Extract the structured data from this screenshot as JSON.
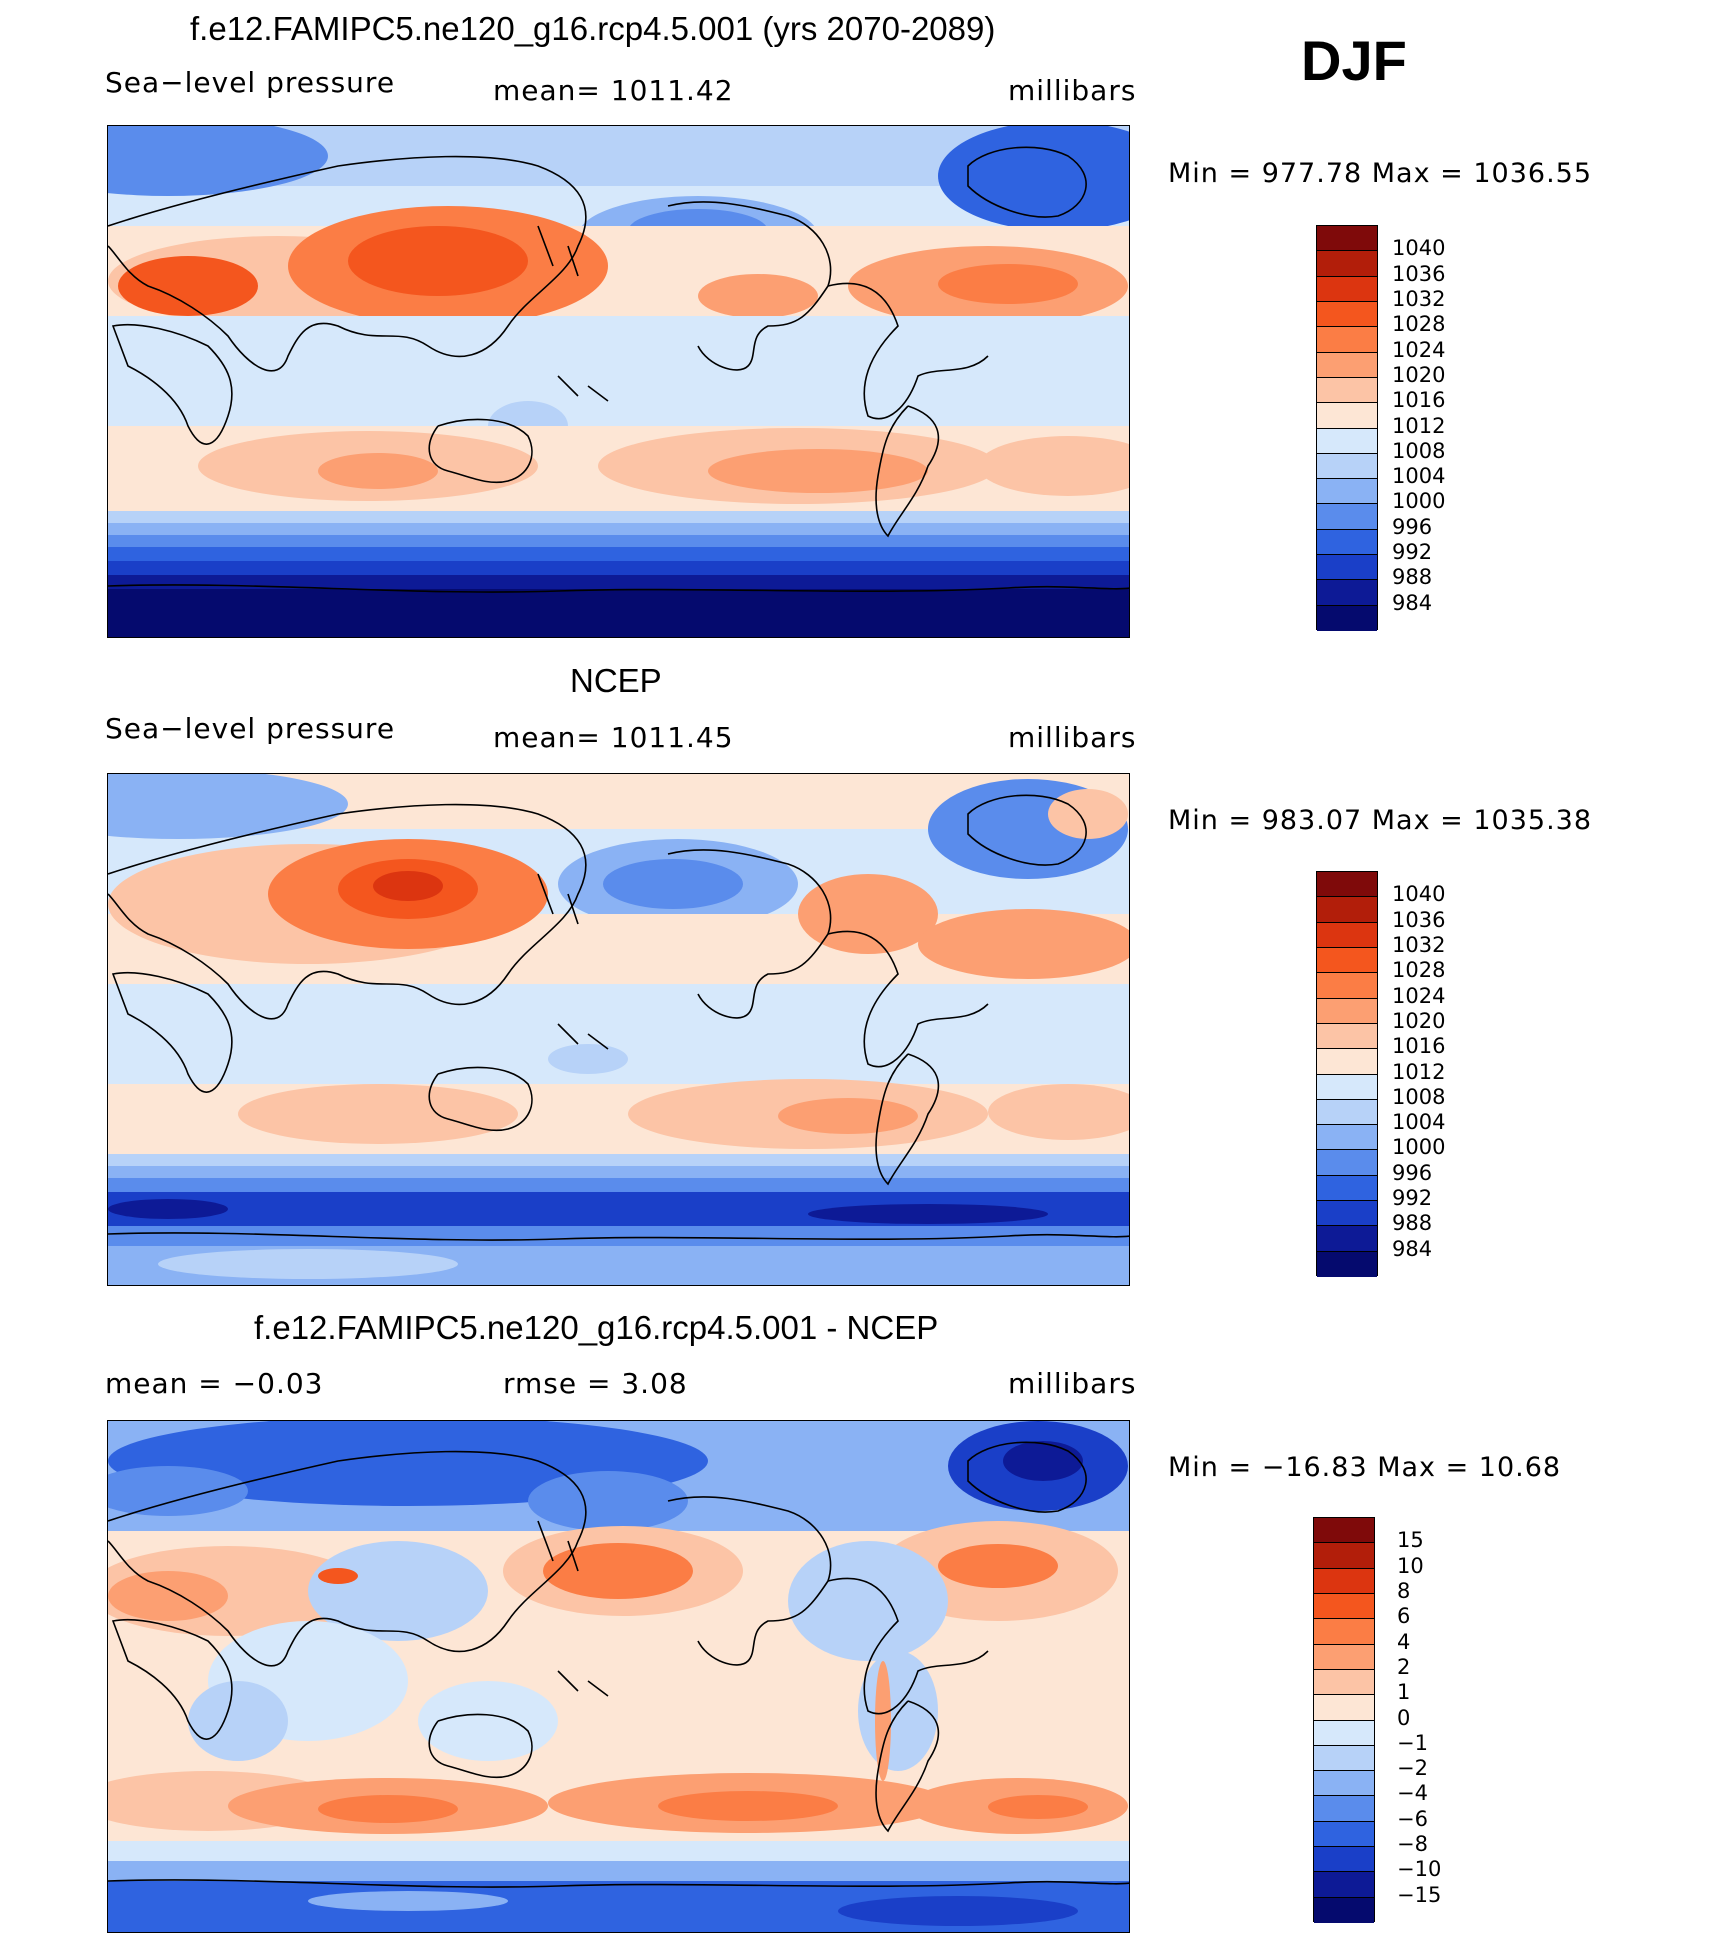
{
  "season": "DJF",
  "panels": [
    {
      "id": "model",
      "title": "f.e12.FAMIPC5.ne120_g16.rcp4.5.001 (yrs 2070-2089)",
      "left_label": "Sea−level pressure",
      "center_label": "mean=  1011.42",
      "right_label": "millibars",
      "minmax": "Min  =  977.78  Max  =  1036.55",
      "colorbar_ticks": [
        "1040",
        "1036",
        "1032",
        "1028",
        "1024",
        "1020",
        "1016",
        "1012",
        "1008",
        "1004",
        "1000",
        "996",
        "992",
        "988",
        "984"
      ]
    },
    {
      "id": "obs",
      "title": "NCEP",
      "left_label": "Sea−level pressure",
      "center_label": "mean=  1011.45",
      "right_label": "millibars",
      "minmax": "Min  =  983.07  Max  =  1035.38",
      "colorbar_ticks": [
        "1040",
        "1036",
        "1032",
        "1028",
        "1024",
        "1020",
        "1016",
        "1012",
        "1008",
        "1004",
        "1000",
        "996",
        "992",
        "988",
        "984"
      ]
    },
    {
      "id": "diff",
      "title": "f.e12.FAMIPC5.ne120_g16.rcp4.5.001 - NCEP",
      "left_label": "mean  =    −0.03",
      "center_label": "rmse  =     3.08",
      "right_label": "millibars",
      "minmax": "Min  =  −16.83  Max  =    10.68",
      "colorbar_ticks": [
        "15",
        "10",
        "8",
        "6",
        "4",
        "2",
        "1",
        "0",
        "−1",
        "−2",
        "−4",
        "−6",
        "−8",
        "−10",
        "−15"
      ]
    }
  ],
  "colors": {
    "palette_top_to_bottom": [
      "#7f0a0a",
      "#b21e0a",
      "#dc3510",
      "#f4561e",
      "#fb7d45",
      "#fc9f72",
      "#fcc4a6",
      "#fde6d5",
      "#d6e8fb",
      "#b7d2f8",
      "#8ab2f4",
      "#5a8cec",
      "#2f63e0",
      "#1a3fc8",
      "#0d1a96",
      "#050a6e"
    ],
    "ocean_model": "#d6e8fb",
    "coast": "#000000"
  }
}
